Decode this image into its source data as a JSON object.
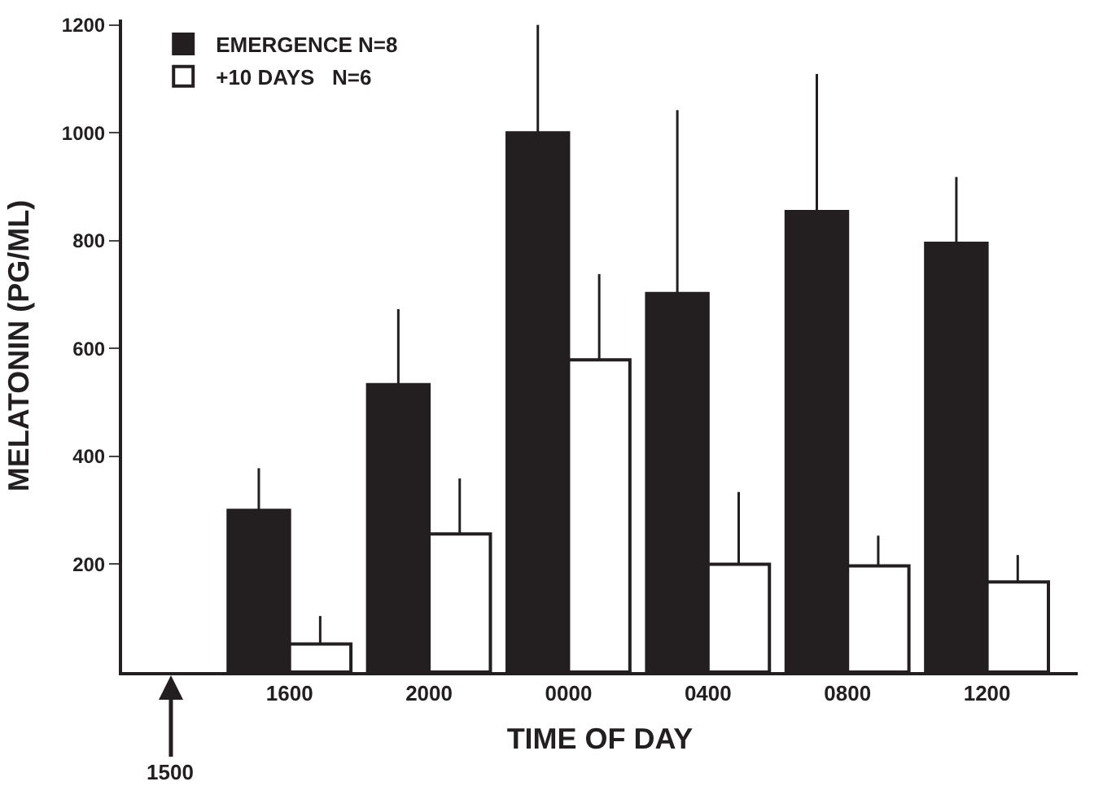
{
  "chart_data": {
    "type": "bar",
    "xlabel": "TIME OF DAY",
    "ylabel": "MELATONIN (PG/ML)",
    "categories": [
      "1600",
      "2000",
      "0000",
      "0400",
      "0800",
      "1200"
    ],
    "series": [
      {
        "name": "EMERGENCE N=8",
        "color": "#231f20",
        "values": [
          300,
          533,
          1000,
          702,
          854,
          795
        ],
        "errors": [
          [
            300,
            378
          ],
          [
            533,
            673
          ],
          [
            1000,
            1200
          ],
          [
            702,
            1042
          ],
          [
            854,
            1109
          ],
          [
            795,
            918
          ]
        ]
      },
      {
        "name": "+10 DAYS   N=6",
        "color": "#ffffff",
        "values": [
          52,
          256,
          579,
          200,
          197,
          167
        ],
        "errors": [
          [
            52,
            104
          ],
          [
            256,
            359
          ],
          [
            579,
            738
          ],
          [
            200,
            334
          ],
          [
            197,
            253
          ],
          [
            167,
            217
          ]
        ]
      }
    ],
    "annotations": [
      "1500"
    ],
    "ylim": [
      0,
      1210
    ],
    "yticks": [
      200,
      400,
      600,
      800,
      1000,
      1200
    ],
    "legend": "top left"
  }
}
